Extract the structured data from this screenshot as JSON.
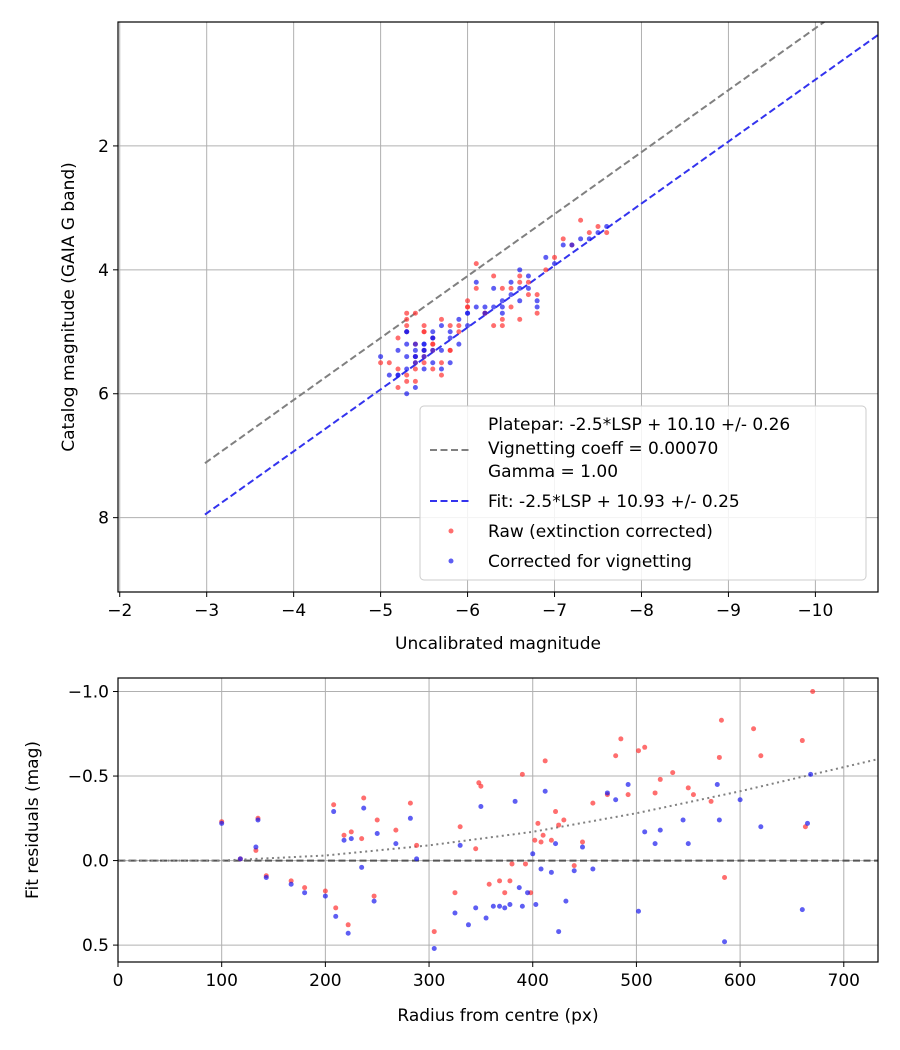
{
  "chart_data": [
    {
      "type": "scatter",
      "xlabel": "Uncalibrated magnitude",
      "ylabel": "Catalog magnitude (GAIA G band)",
      "xlim": [
        -1.98,
        -10.72
      ],
      "ylim": [
        0.0,
        9.2
      ],
      "x_ticks": [
        -2,
        -3,
        -4,
        -5,
        -6,
        -7,
        -8,
        -9,
        -10
      ],
      "x_tick_labels": [
        "−2",
        "−3",
        "−4",
        "−5",
        "−6",
        "−7",
        "−8",
        "−9",
        "−10"
      ],
      "y_ticks": [
        2,
        4,
        6,
        8
      ],
      "y_tick_labels": [
        "2",
        "4",
        "6",
        "8"
      ],
      "grid": true,
      "legend_position": "lower-right",
      "legend": {
        "platepar_line1": "Platepar: -2.5*LSP + 10.10 +/- 0.26",
        "platepar_line2": "Vignetting coeff = 0.00070",
        "platepar_line3": "Gamma = 1.00",
        "fit": "Fit: -2.5*LSP + 10.93 +/- 0.25",
        "raw": "Raw (extinction corrected)",
        "corrected": "Corrected for vignetting"
      },
      "lines": [
        {
          "name": "Platepar",
          "color": "#808080",
          "intercept": 10.1,
          "slope": 1,
          "style": "dashed"
        },
        {
          "name": "Fit",
          "color": "#3333ee",
          "intercept": 10.93,
          "slope": 1,
          "style": "dashed"
        }
      ],
      "series": [
        {
          "name": "Raw (extinction corrected)",
          "color": "#ff3030",
          "x": [
            -5.2,
            -5.3,
            -5.4,
            -5.5,
            -5.6,
            -5.3,
            -5.4,
            -5.2,
            -5.5,
            -5.7,
            -5.3,
            -5.6,
            -5.4,
            -5.5,
            -5.8,
            -5.4,
            -5.3,
            -5.6,
            -5.7,
            -5.5,
            -5.4,
            -5.9,
            -5.3,
            -5.2,
            -5.6,
            -5.8,
            -6.0,
            -6.1,
            -5.5,
            -5.4,
            -5.7,
            -5.6,
            -6.2,
            -6.3,
            -6.0,
            -6.4,
            -6.5,
            -6.6,
            -6.7,
            -6.8,
            -6.5,
            -6.6,
            -6.4,
            -6.2,
            -6.1,
            -6.6,
            -6.7,
            -6.9,
            -7.0,
            -7.1,
            -7.2,
            -7.4,
            -7.5,
            -7.6,
            -7.3,
            -6.8,
            -6.0,
            -6.4,
            -5.5,
            -5.9,
            -5.1,
            -5.3,
            -5.0,
            -5.8,
            -6.3
          ],
          "y": [
            5.9,
            5.7,
            5.6,
            5.4,
            5.2,
            5.0,
            4.7,
            5.6,
            5.3,
            5.5,
            5.8,
            5.1,
            5.4,
            4.9,
            5.3,
            5.2,
            4.8,
            5.6,
            5.7,
            5.0,
            5.5,
            4.9,
            4.7,
            5.1,
            5.3,
            4.9,
            4.6,
            4.3,
            5.0,
            5.8,
            4.8,
            5.2,
            4.7,
            4.9,
            4.5,
            4.3,
            4.6,
            4.2,
            4.4,
            4.7,
            4.3,
            4.1,
            4.9,
            4.7,
            3.9,
            4.8,
            4.2,
            4.0,
            3.8,
            3.5,
            3.6,
            3.4,
            3.3,
            3.4,
            3.2,
            4.4,
            4.6,
            4.8,
            5.5,
            5.0,
            5.5,
            4.9,
            5.5,
            5.3,
            4.1
          ]
        },
        {
          "name": "Corrected for vignetting",
          "color": "#1a1aee",
          "x": [
            -5.2,
            -5.3,
            -5.4,
            -5.5,
            -5.6,
            -5.3,
            -5.4,
            -5.2,
            -5.5,
            -5.7,
            -5.3,
            -5.6,
            -5.4,
            -5.5,
            -5.8,
            -5.4,
            -5.3,
            -5.6,
            -5.7,
            -5.5,
            -5.4,
            -5.9,
            -5.3,
            -5.2,
            -5.6,
            -5.8,
            -6.0,
            -6.1,
            -5.5,
            -5.4,
            -5.7,
            -5.6,
            -6.2,
            -6.3,
            -6.0,
            -6.4,
            -6.5,
            -6.6,
            -6.7,
            -6.8,
            -6.5,
            -6.6,
            -6.4,
            -6.2,
            -6.1,
            -6.6,
            -6.7,
            -6.9,
            -7.0,
            -7.1,
            -7.2,
            -7.4,
            -7.5,
            -7.6,
            -7.3,
            -6.8,
            -6.0,
            -6.4,
            -5.5,
            -5.9,
            -5.1,
            -5.3,
            -5.0,
            -5.8,
            -6.3
          ],
          "y": [
            5.7,
            5.6,
            5.5,
            5.3,
            5.1,
            5.4,
            5.2,
            5.7,
            5.4,
            5.3,
            6.0,
            5.0,
            5.3,
            5.2,
            5.1,
            5.4,
            5.2,
            5.5,
            5.6,
            5.3,
            5.4,
            4.8,
            5.0,
            5.3,
            5.3,
            5.0,
            4.7,
            4.6,
            5.2,
            5.9,
            4.9,
            5.1,
            4.7,
            4.6,
            4.7,
            4.5,
            4.4,
            4.3,
            4.3,
            4.6,
            4.2,
            4.0,
            4.7,
            4.6,
            4.2,
            4.5,
            4.1,
            3.8,
            3.9,
            3.6,
            3.6,
            3.5,
            3.4,
            3.3,
            3.5,
            4.5,
            4.9,
            4.6,
            5.6,
            5.2,
            5.7,
            5.0,
            5.4,
            5.5,
            4.3
          ]
        }
      ]
    },
    {
      "type": "scatter",
      "xlabel": "Radius from centre (px)",
      "ylabel": "Fit residuals (mag)",
      "xlim": [
        0,
        733
      ],
      "ylim": [
        -1.08,
        0.6
      ],
      "x_ticks": [
        0,
        100,
        200,
        300,
        400,
        500,
        600,
        700
      ],
      "x_tick_labels": [
        "0",
        "100",
        "200",
        "300",
        "400",
        "500",
        "600",
        "700"
      ],
      "y_ticks": [
        0.5,
        0.0,
        -0.5,
        -1.0
      ],
      "y_tick_labels": [
        "0.5",
        "0.0",
        "−0.5",
        "−1.0"
      ],
      "grid": true,
      "lines": [
        {
          "name": "zero",
          "color": "#555555",
          "style": "dashed",
          "x": [
            0,
            733
          ],
          "y": [
            0,
            0
          ]
        },
        {
          "name": "vignetting model",
          "color": "#808080",
          "style": "dotted",
          "x": [
            0,
            100,
            200,
            300,
            400,
            500,
            600,
            733
          ],
          "y": [
            0,
            0,
            -0.03,
            -0.09,
            -0.17,
            -0.28,
            -0.41,
            -0.6
          ]
        }
      ],
      "series": [
        {
          "name": "Raw",
          "color": "#ff3030",
          "x": [
            100,
            118,
            133,
            135,
            143,
            167,
            180,
            200,
            208,
            210,
            218,
            222,
            225,
            235,
            237,
            247,
            250,
            268,
            282,
            288,
            305,
            325,
            330,
            345,
            348,
            350,
            358,
            368,
            373,
            378,
            380,
            390,
            393,
            398,
            402,
            405,
            408,
            410,
            412,
            418,
            422,
            425,
            430,
            440,
            448,
            458,
            472,
            480,
            485,
            492,
            502,
            508,
            518,
            523,
            535,
            550,
            555,
            572,
            580,
            582,
            585,
            613,
            620,
            660,
            663,
            670
          ],
          "y": [
            -0.23,
            -0.01,
            -0.06,
            -0.25,
            0.09,
            0.12,
            0.16,
            0.18,
            -0.33,
            0.28,
            -0.15,
            0.38,
            -0.17,
            -0.13,
            -0.37,
            0.21,
            -0.24,
            -0.18,
            -0.34,
            -0.09,
            0.42,
            0.19,
            -0.2,
            -0.07,
            -0.46,
            -0.44,
            0.14,
            0.12,
            0.19,
            0.12,
            0.02,
            -0.51,
            0.02,
            0.19,
            -0.12,
            -0.22,
            -0.11,
            -0.15,
            -0.59,
            -0.12,
            -0.29,
            -0.21,
            -0.24,
            0.03,
            -0.11,
            -0.34,
            -0.39,
            -0.62,
            -0.72,
            -0.39,
            -0.65,
            -0.67,
            -0.4,
            -0.48,
            -0.52,
            -0.43,
            -0.39,
            -0.35,
            -0.61,
            -0.83,
            0.1,
            -0.78,
            -0.62,
            -0.71,
            -0.2,
            -1.0
          ]
        },
        {
          "name": "Corrected",
          "color": "#1a1aee",
          "x": [
            100,
            118,
            133,
            135,
            143,
            167,
            180,
            200,
            208,
            210,
            218,
            222,
            225,
            235,
            237,
            247,
            250,
            268,
            282,
            288,
            305,
            325,
            330,
            338,
            345,
            350,
            355,
            362,
            368,
            373,
            378,
            383,
            387,
            390,
            395,
            400,
            403,
            408,
            412,
            418,
            422,
            425,
            432,
            440,
            448,
            458,
            472,
            480,
            492,
            502,
            508,
            518,
            523,
            545,
            550,
            578,
            580,
            585,
            600,
            620,
            660,
            665,
            668
          ],
          "y": [
            -0.22,
            -0.01,
            -0.08,
            -0.24,
            0.1,
            0.14,
            0.19,
            0.21,
            -0.29,
            0.33,
            -0.12,
            0.43,
            -0.13,
            0.04,
            -0.31,
            0.24,
            -0.16,
            -0.1,
            -0.25,
            -0.01,
            0.52,
            0.31,
            -0.09,
            0.38,
            0.28,
            -0.32,
            0.34,
            0.27,
            0.27,
            0.28,
            0.26,
            -0.35,
            0.16,
            0.27,
            0.19,
            -0.04,
            0.26,
            0.05,
            -0.41,
            0.07,
            -0.1,
            0.42,
            0.24,
            0.06,
            -0.08,
            0.05,
            -0.4,
            -0.36,
            -0.45,
            0.3,
            -0.17,
            -0.1,
            -0.18,
            -0.24,
            -0.1,
            -0.45,
            -0.24,
            0.48,
            -0.36,
            -0.2,
            0.29,
            -0.22,
            -0.51
          ]
        }
      ]
    }
  ]
}
